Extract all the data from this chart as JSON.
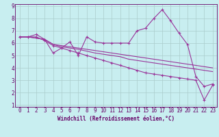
{
  "xlabel": "Windchill (Refroidissement éolien,°C)",
  "bg_color": "#c8eef0",
  "line_color": "#993399",
  "grid_color": "#aacccc",
  "x_values": [
    0,
    1,
    2,
    3,
    4,
    5,
    6,
    7,
    8,
    9,
    10,
    11,
    12,
    13,
    14,
    15,
    16,
    17,
    18,
    19,
    20,
    21,
    22,
    23
  ],
  "series1_y": [
    6.5,
    6.5,
    6.7,
    6.3,
    5.2,
    5.6,
    6.1,
    5.0,
    6.5,
    6.1,
    6.0,
    6.0,
    6.0,
    6.0,
    7.0,
    7.2,
    8.0,
    8.7,
    7.8,
    6.8,
    5.9,
    3.3,
    2.5,
    2.7
  ],
  "series2_y": [
    6.5,
    6.5,
    6.4,
    6.3,
    5.9,
    5.8,
    5.7,
    5.6,
    5.5,
    5.4,
    5.3,
    5.2,
    5.1,
    5.0,
    4.9,
    4.8,
    4.7,
    4.6,
    4.5,
    4.4,
    4.3,
    4.2,
    4.1,
    4.0
  ],
  "series3_y": [
    6.5,
    6.5,
    6.4,
    6.3,
    5.9,
    5.7,
    5.6,
    5.5,
    5.35,
    5.2,
    5.1,
    5.0,
    4.9,
    4.7,
    4.6,
    4.5,
    4.4,
    4.3,
    4.2,
    4.1,
    4.0,
    3.9,
    3.8,
    3.7
  ],
  "series4_y": [
    6.5,
    6.5,
    6.5,
    6.2,
    5.8,
    5.6,
    5.4,
    5.2,
    5.0,
    4.8,
    4.6,
    4.4,
    4.2,
    4.0,
    3.8,
    3.6,
    3.5,
    3.4,
    3.3,
    3.2,
    3.1,
    3.0,
    1.4,
    2.6
  ],
  "ylim": [
    1,
    9
  ],
  "xlim": [
    -0.5,
    23.5
  ],
  "yticks": [
    1,
    2,
    3,
    4,
    5,
    6,
    7,
    8,
    9
  ],
  "xticks": [
    0,
    1,
    2,
    3,
    4,
    5,
    6,
    7,
    8,
    9,
    10,
    11,
    12,
    13,
    14,
    15,
    16,
    17,
    18,
    19,
    20,
    21,
    22,
    23
  ],
  "tick_fontsize": 5.5,
  "xlabel_fontsize": 5.5
}
